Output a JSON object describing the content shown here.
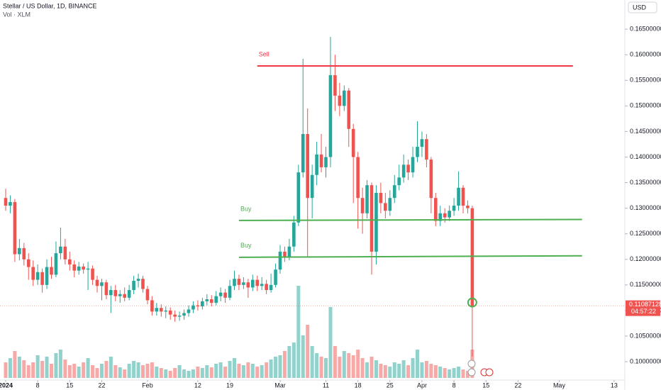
{
  "chart_data": {
    "type": "candlestick",
    "title": "Stellar / US Dollar, 1D, BINANCE",
    "subtitle": "Vol · XLM",
    "currency": "USD",
    "countdown": "04:57:22",
    "up_color": "#26a69a",
    "down_color": "#ef5350",
    "ylim": [
      0.0964,
      0.1707
    ],
    "yticks": [
      {
        "value": 0.165,
        "label": "0.16500000"
      },
      {
        "value": 0.16,
        "label": "0.16000000"
      },
      {
        "value": 0.155,
        "label": "0.15500000"
      },
      {
        "value": 0.15,
        "label": "0.15000000"
      },
      {
        "value": 0.145,
        "label": "0.14500000"
      },
      {
        "value": 0.14,
        "label": "0.14000000"
      },
      {
        "value": 0.135,
        "label": "0.13500000"
      },
      {
        "value": 0.13,
        "label": "0.13000000"
      },
      {
        "value": 0.125,
        "label": "0.12500000"
      },
      {
        "value": 0.12,
        "label": "0.12000000"
      },
      {
        "value": 0.115,
        "label": "0.11500000"
      },
      {
        "value": 0.11,
        "label": "0.11000000"
      },
      {
        "value": 0.105,
        "label": "0.10500000"
      },
      {
        "value": 0.1,
        "label": "0.10000000"
      }
    ],
    "xticks": [
      {
        "value": "2024-01-01",
        "label": "2024"
      },
      {
        "value": "2024-01-08",
        "label": "8"
      },
      {
        "value": "2024-01-15",
        "label": "15"
      },
      {
        "value": "2024-01-22",
        "label": "22"
      },
      {
        "value": "2024-02-01",
        "label": "Feb"
      },
      {
        "value": "2024-02-12",
        "label": "12"
      },
      {
        "value": "2024-02-19",
        "label": "19"
      },
      {
        "value": "2024-03-01",
        "label": "Mar"
      },
      {
        "value": "2024-03-11",
        "label": "11"
      },
      {
        "value": "2024-03-18",
        "label": "18"
      },
      {
        "value": "2024-03-25",
        "label": "25"
      },
      {
        "value": "2024-04-01",
        "label": "Apr"
      },
      {
        "value": "2024-04-08",
        "label": "8"
      },
      {
        "value": "2024-04-15",
        "label": "15"
      },
      {
        "value": "2024-04-22",
        "label": "22"
      },
      {
        "value": "2024-05-01",
        "label": "May"
      },
      {
        "value": "2024-05-13",
        "label": "13"
      }
    ],
    "x": [
      "2024-01-01",
      "2024-01-02",
      "2024-01-03",
      "2024-01-04",
      "2024-01-05",
      "2024-01-06",
      "2024-01-07",
      "2024-01-08",
      "2024-01-09",
      "2024-01-10",
      "2024-01-11",
      "2024-01-12",
      "2024-01-13",
      "2024-01-14",
      "2024-01-15",
      "2024-01-16",
      "2024-01-17",
      "2024-01-18",
      "2024-01-19",
      "2024-01-20",
      "2024-01-21",
      "2024-01-22",
      "2024-01-23",
      "2024-01-24",
      "2024-01-25",
      "2024-01-26",
      "2024-01-27",
      "2024-01-28",
      "2024-01-29",
      "2024-01-30",
      "2024-01-31",
      "2024-02-01",
      "2024-02-02",
      "2024-02-03",
      "2024-02-04",
      "2024-02-05",
      "2024-02-06",
      "2024-02-07",
      "2024-02-08",
      "2024-02-09",
      "2024-02-10",
      "2024-02-11",
      "2024-02-12",
      "2024-02-13",
      "2024-02-14",
      "2024-02-15",
      "2024-02-16",
      "2024-02-17",
      "2024-02-18",
      "2024-02-19",
      "2024-02-20",
      "2024-02-21",
      "2024-02-22",
      "2024-02-23",
      "2024-02-24",
      "2024-02-25",
      "2024-02-26",
      "2024-02-27",
      "2024-02-28",
      "2024-02-29",
      "2024-03-01",
      "2024-03-02",
      "2024-03-03",
      "2024-03-04",
      "2024-03-05",
      "2024-03-06",
      "2024-03-07",
      "2024-03-08",
      "2024-03-09",
      "2024-03-10",
      "2024-03-11",
      "2024-03-12",
      "2024-03-13",
      "2024-03-14",
      "2024-03-15",
      "2024-03-16",
      "2024-03-17",
      "2024-03-18",
      "2024-03-19",
      "2024-03-20",
      "2024-03-21",
      "2024-03-22",
      "2024-03-23",
      "2024-03-24",
      "2024-03-25",
      "2024-03-26",
      "2024-03-27",
      "2024-03-28",
      "2024-03-29",
      "2024-03-30",
      "2024-03-31",
      "2024-04-01",
      "2024-04-02",
      "2024-04-03",
      "2024-04-04",
      "2024-04-05",
      "2024-04-06",
      "2024-04-07",
      "2024-04-08",
      "2024-04-09",
      "2024-04-10",
      "2024-04-11",
      "2024-04-12"
    ],
    "open": [
      0.132,
      0.1305,
      0.1312,
      0.121,
      0.1222,
      0.12,
      0.1185,
      0.116,
      0.1175,
      0.115,
      0.1185,
      0.117,
      0.1212,
      0.1225,
      0.12,
      0.119,
      0.1178,
      0.1186,
      0.118,
      0.1182,
      0.116,
      0.1148,
      0.1155,
      0.113,
      0.114,
      0.1128,
      0.1132,
      0.1125,
      0.114,
      0.1158,
      0.1162,
      0.1142,
      0.112,
      0.1098,
      0.1105,
      0.1098,
      0.11,
      0.1092,
      0.1088,
      0.109,
      0.1095,
      0.1102,
      0.111,
      0.1108,
      0.1118,
      0.1122,
      0.1115,
      0.1128,
      0.1135,
      0.1125,
      0.1148,
      0.1162,
      0.115,
      0.1155,
      0.1145,
      0.116,
      0.1148,
      0.1152,
      0.114,
      0.115,
      0.118,
      0.1215,
      0.1205,
      0.1225,
      0.1272,
      0.137,
      0.1445,
      0.132,
      0.1365,
      0.1405,
      0.138,
      0.14,
      0.156,
      0.152,
      0.15,
      0.153,
      0.1455,
      0.14,
      0.132,
      0.129,
      0.1345,
      0.1215,
      0.133,
      0.131,
      0.1295,
      0.132,
      0.1345,
      0.136,
      0.1385,
      0.137,
      0.14,
      0.142,
      0.1435,
      0.1395,
      0.132,
      0.1275,
      0.129,
      0.1282,
      0.1295,
      0.1305,
      0.134,
      0.1305,
      0.13
    ],
    "high": [
      0.1338,
      0.1325,
      0.1318,
      0.124,
      0.1232,
      0.1212,
      0.1198,
      0.119,
      0.1182,
      0.12,
      0.1205,
      0.1235,
      0.1262,
      0.124,
      0.1215,
      0.1198,
      0.1195,
      0.1192,
      0.1195,
      0.1188,
      0.1168,
      0.1162,
      0.116,
      0.1148,
      0.115,
      0.114,
      0.1145,
      0.115,
      0.1168,
      0.1172,
      0.1168,
      0.1148,
      0.1128,
      0.1115,
      0.1112,
      0.1108,
      0.1106,
      0.11,
      0.1098,
      0.1102,
      0.111,
      0.1118,
      0.112,
      0.1125,
      0.1132,
      0.113,
      0.1138,
      0.1145,
      0.1142,
      0.116,
      0.1178,
      0.117,
      0.1165,
      0.1162,
      0.117,
      0.1168,
      0.1165,
      0.116,
      0.1172,
      0.1192,
      0.1228,
      0.1225,
      0.124,
      0.1285,
      0.1385,
      0.1592,
      0.1495,
      0.1385,
      0.143,
      0.1445,
      0.142,
      0.1635,
      0.16,
      0.1545,
      0.154,
      0.1535,
      0.1465,
      0.141,
      0.134,
      0.1355,
      0.135,
      0.1345,
      0.135,
      0.133,
      0.1335,
      0.1365,
      0.1385,
      0.1405,
      0.1395,
      0.142,
      0.147,
      0.145,
      0.1445,
      0.14,
      0.133,
      0.1305,
      0.13,
      0.1305,
      0.132,
      0.1372,
      0.1345,
      0.1315,
      0.1305
    ],
    "low": [
      0.1295,
      0.129,
      0.1195,
      0.1198,
      0.1188,
      0.116,
      0.1148,
      0.115,
      0.1135,
      0.1142,
      0.1162,
      0.1165,
      0.12,
      0.119,
      0.1178,
      0.1165,
      0.117,
      0.1172,
      0.114,
      0.115,
      0.1135,
      0.112,
      0.1122,
      0.1095,
      0.1118,
      0.1115,
      0.1118,
      0.112,
      0.1132,
      0.1145,
      0.1135,
      0.1112,
      0.109,
      0.109,
      0.1088,
      0.1085,
      0.1082,
      0.1078,
      0.108,
      0.1082,
      0.1088,
      0.1095,
      0.11,
      0.1102,
      0.111,
      0.1108,
      0.111,
      0.1118,
      0.1115,
      0.112,
      0.114,
      0.114,
      0.1142,
      0.1125,
      0.1138,
      0.1138,
      0.114,
      0.1132,
      0.1135,
      0.1145,
      0.1172,
      0.1195,
      0.1198,
      0.1215,
      0.1265,
      0.136,
      0.1205,
      0.128,
      0.1345,
      0.137,
      0.136,
      0.138,
      0.149,
      0.148,
      0.149,
      0.142,
      0.131,
      0.126,
      0.125,
      0.128,
      0.117,
      0.119,
      0.129,
      0.128,
      0.1285,
      0.131,
      0.1335,
      0.135,
      0.1355,
      0.136,
      0.139,
      0.14,
      0.138,
      0.129,
      0.1265,
      0.1265,
      0.1272,
      0.1275,
      0.1285,
      0.1295,
      0.129,
      0.129,
      0.101
    ],
    "close": [
      0.1305,
      0.1312,
      0.121,
      0.1222,
      0.12,
      0.1185,
      0.116,
      0.1175,
      0.115,
      0.1185,
      0.117,
      0.1212,
      0.1225,
      0.12,
      0.119,
      0.1178,
      0.1186,
      0.118,
      0.1182,
      0.116,
      0.1148,
      0.1155,
      0.113,
      0.114,
      0.1128,
      0.1132,
      0.1125,
      0.114,
      0.1158,
      0.1162,
      0.1142,
      0.112,
      0.1098,
      0.1105,
      0.1098,
      0.11,
      0.1092,
      0.1088,
      0.109,
      0.1095,
      0.1102,
      0.111,
      0.1108,
      0.1118,
      0.1122,
      0.1115,
      0.1128,
      0.1135,
      0.1125,
      0.1148,
      0.1162,
      0.115,
      0.1155,
      0.1145,
      0.116,
      0.1148,
      0.1152,
      0.114,
      0.115,
      0.118,
      0.1215,
      0.1205,
      0.1225,
      0.1272,
      0.137,
      0.1445,
      0.132,
      0.1365,
      0.1405,
      0.138,
      0.14,
      0.156,
      0.152,
      0.15,
      0.153,
      0.1455,
      0.14,
      0.132,
      0.129,
      0.1345,
      0.1215,
      0.133,
      0.131,
      0.1295,
      0.132,
      0.1345,
      0.136,
      0.1385,
      0.137,
      0.14,
      0.142,
      0.1435,
      0.1395,
      0.132,
      0.1275,
      0.129,
      0.1282,
      0.1295,
      0.1305,
      0.134,
      0.1305,
      0.13,
      0.11087128
    ],
    "volume": [
      22,
      28,
      38,
      30,
      25,
      18,
      22,
      32,
      24,
      30,
      20,
      35,
      40,
      26,
      18,
      20,
      16,
      22,
      28,
      18,
      14,
      20,
      24,
      30,
      18,
      15,
      12,
      20,
      24,
      22,
      18,
      20,
      22,
      16,
      14,
      12,
      10,
      14,
      18,
      12,
      10,
      12,
      16,
      14,
      18,
      15,
      20,
      22,
      16,
      24,
      28,
      20,
      18,
      22,
      20,
      16,
      18,
      22,
      26,
      30,
      32,
      38,
      45,
      50,
      130,
      60,
      75,
      45,
      35,
      30,
      28,
      100,
      45,
      30,
      38,
      35,
      32,
      40,
      28,
      22,
      30,
      25,
      20,
      18,
      16,
      22,
      20,
      25,
      18,
      28,
      40,
      22,
      24,
      20,
      18,
      16,
      14,
      12,
      14,
      16,
      12,
      10,
      40
    ],
    "annotations": [
      {
        "label": "Sell",
        "color": "#f23645",
        "start": "2024-02-25",
        "end": "2024-05-04",
        "y": [
          0.1578,
          0.1578
        ]
      },
      {
        "label": "Buy",
        "color": "#4caf50",
        "start": "2024-02-21",
        "end": "2024-05-06",
        "y": [
          0.1276,
          0.1278
        ]
      },
      {
        "label": "Buy",
        "color": "#4caf50",
        "start": "2024-02-21",
        "end": "2024-05-06",
        "y": [
          0.1204,
          0.1207
        ]
      }
    ]
  }
}
